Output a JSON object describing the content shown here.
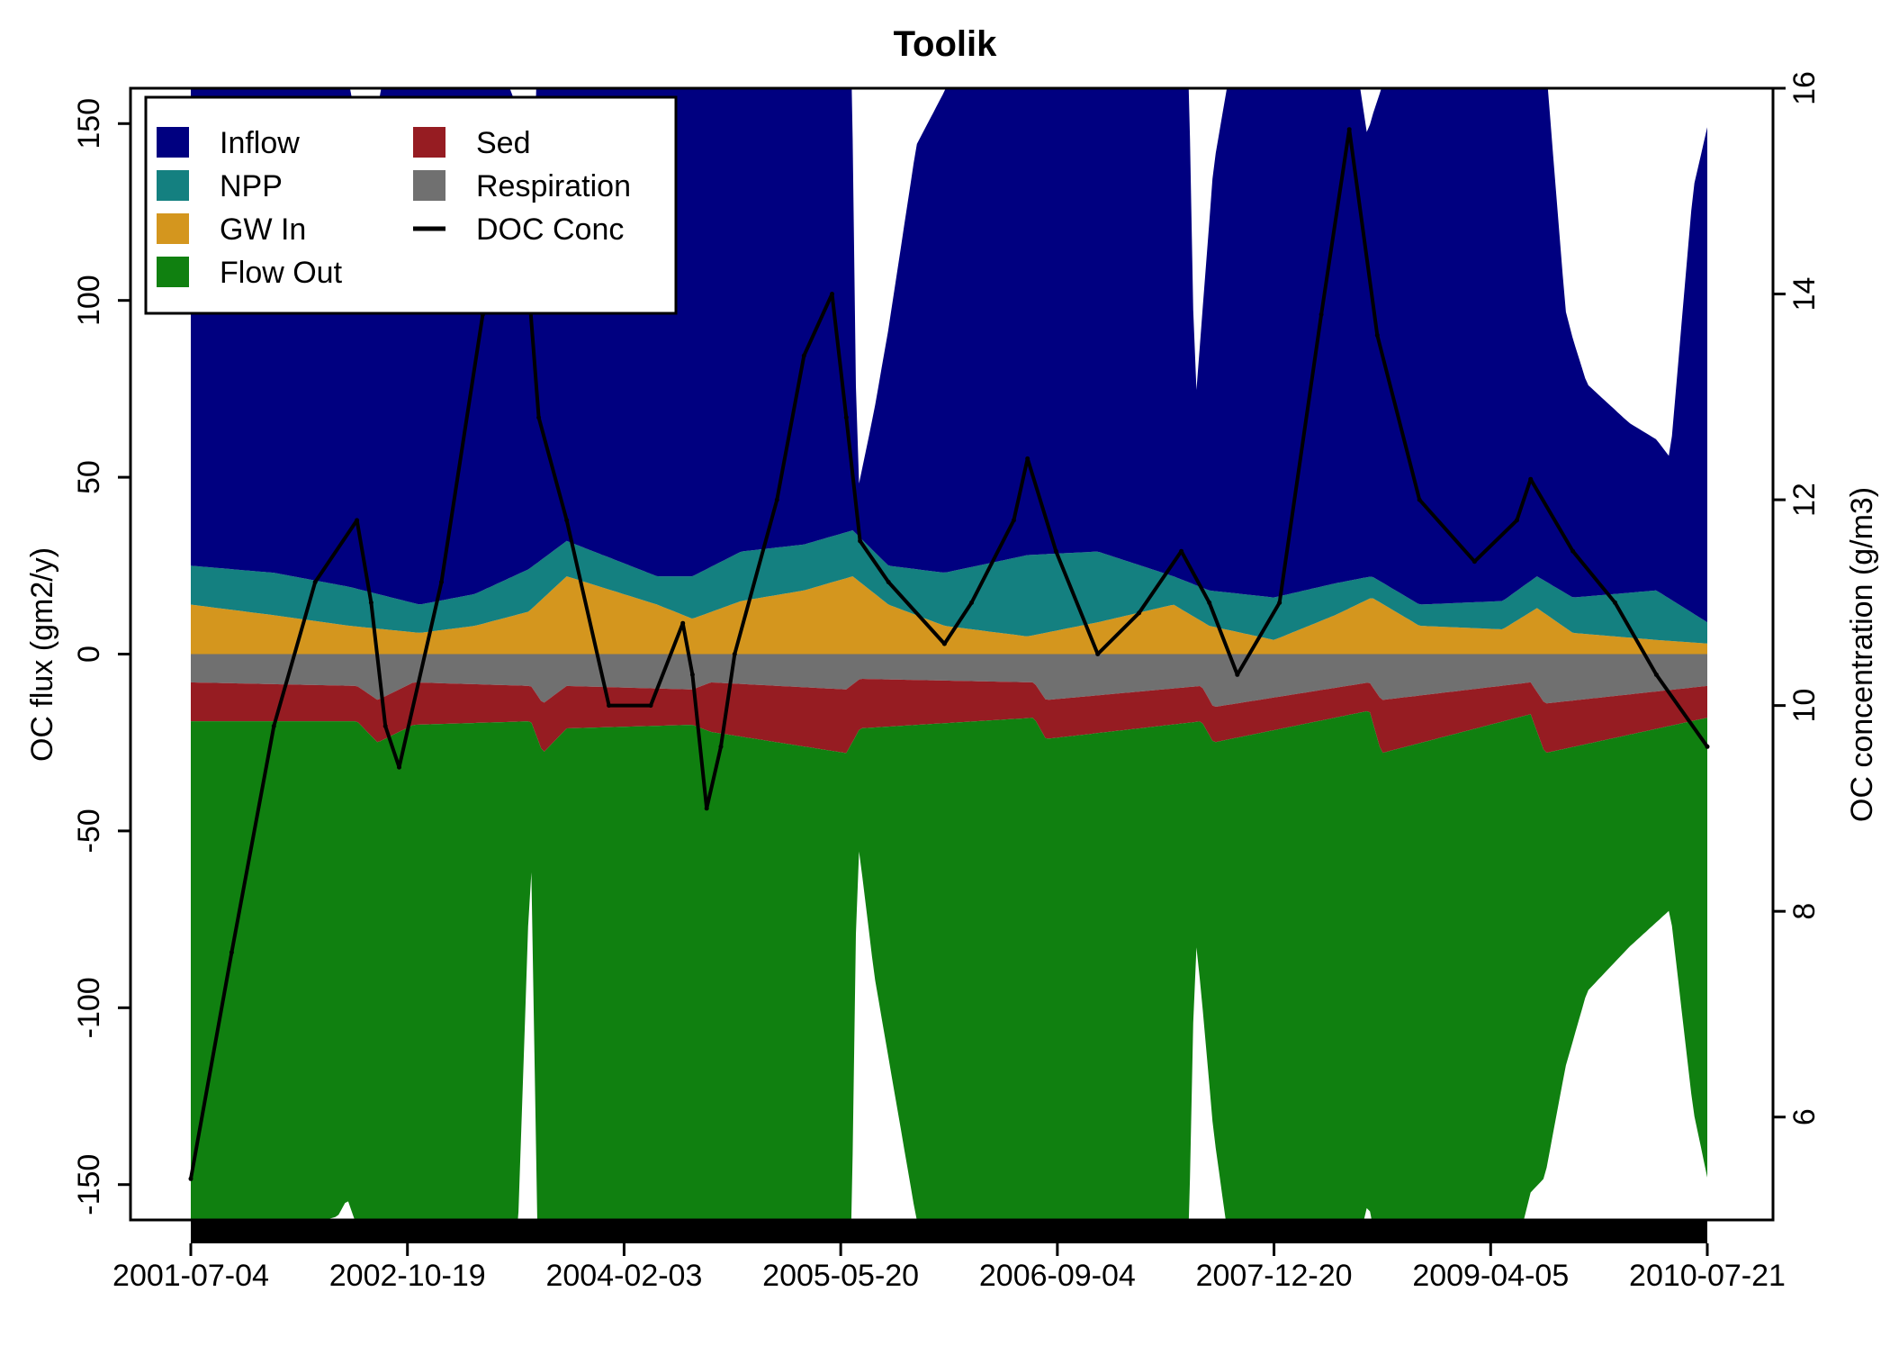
{
  "chart_data": {
    "type": "area",
    "title": "Toolik",
    "ylabel": "OC flux (gm2/y)",
    "y2label": "OC concentration (g/m3)",
    "xlabel": "",
    "ylim": [
      -160,
      160
    ],
    "y2lim": [
      5,
      16
    ],
    "xlim": [
      "2001-07-04",
      "2010-07-21"
    ],
    "yticks": [
      -150,
      -100,
      -50,
      0,
      50,
      100,
      150
    ],
    "y2ticks": [
      6,
      8,
      10,
      12,
      14,
      16
    ],
    "xticks": [
      "2001-07-04",
      "2002-10-19",
      "2004-02-03",
      "2005-05-20",
      "2006-09-04",
      "2007-12-20",
      "2009-04-05",
      "2010-07-21"
    ],
    "grid": false,
    "legend_position": "top-left",
    "legend": [
      {
        "label": "Inflow",
        "color": "#000080",
        "kind": "box"
      },
      {
        "label": "NPP",
        "color": "#148080",
        "kind": "box"
      },
      {
        "label": "GW In",
        "color": "#d4961e",
        "kind": "box"
      },
      {
        "label": "Flow Out",
        "color": "#108010",
        "kind": "box"
      },
      {
        "label": "Sed",
        "color": "#961c22",
        "kind": "box"
      },
      {
        "label": "Respiration",
        "color": "#707070",
        "kind": "box"
      },
      {
        "label": "DOC Conc",
        "color": "#000000",
        "kind": "line"
      }
    ],
    "series": [
      {
        "name": "GW In",
        "axis": "left",
        "stack": "positive",
        "color": "#d4961e",
        "x": [
          "2001-07-04",
          "2002-01-01",
          "2002-06-15",
          "2002-11-15",
          "2003-03-15",
          "2003-07-10",
          "2003-10-01",
          "2004-04-15",
          "2004-07-01",
          "2004-10-15",
          "2005-03-01",
          "2005-06-15",
          "2005-09-01",
          "2006-01-01",
          "2006-07-01",
          "2006-12-01",
          "2007-05-15",
          "2007-08-01",
          "2007-12-20",
          "2008-05-01",
          "2008-07-20",
          "2008-11-01",
          "2009-05-01",
          "2009-07-15",
          "2009-10-01",
          "2010-04-01",
          "2010-07-21"
        ],
        "values": [
          14,
          11,
          8,
          6,
          8,
          12,
          22,
          14,
          10,
          15,
          18,
          22,
          14,
          8,
          5,
          9,
          14,
          8,
          4,
          11,
          16,
          8,
          7,
          13,
          6,
          4,
          3
        ]
      },
      {
        "name": "NPP",
        "axis": "left",
        "stack": "positive",
        "color": "#148080",
        "x": [
          "2001-07-04",
          "2002-01-01",
          "2002-06-15",
          "2002-11-15",
          "2003-03-15",
          "2003-07-10",
          "2003-10-01",
          "2004-04-15",
          "2004-07-01",
          "2004-10-15",
          "2005-03-01",
          "2005-06-15",
          "2005-09-01",
          "2006-01-01",
          "2006-07-01",
          "2006-12-01",
          "2007-05-15",
          "2007-08-01",
          "2007-12-20",
          "2008-05-01",
          "2008-07-20",
          "2008-11-01",
          "2009-05-01",
          "2009-07-15",
          "2009-10-01",
          "2010-04-01",
          "2010-07-21"
        ],
        "values": [
          11,
          12,
          11,
          8,
          9,
          12,
          10,
          8,
          12,
          14,
          13,
          13,
          11,
          15,
          23,
          20,
          8,
          10,
          12,
          9,
          6,
          6,
          8,
          9,
          10,
          14,
          6
        ]
      },
      {
        "name": "Inflow",
        "axis": "left",
        "stack": "positive",
        "color": "#000080",
        "x": [
          "2001-07-04",
          "2001-09-01",
          "2002-03-01",
          "2002-05-20",
          "2002-06-10",
          "2002-07-20",
          "2002-09-01",
          "2002-11-01",
          "2003-02-01",
          "2003-05-01",
          "2003-06-20",
          "2003-07-15",
          "2003-08-01",
          "2004-04-01",
          "2004-07-01",
          "2004-10-01",
          "2005-01-01",
          "2005-04-01",
          "2005-06-10",
          "2005-06-25",
          "2005-08-01",
          "2005-11-01",
          "2006-04-01",
          "2006-07-01",
          "2006-10-01",
          "2007-02-01",
          "2007-05-01",
          "2007-06-15",
          "2007-07-01",
          "2007-08-10",
          "2007-10-01",
          "2008-01-01",
          "2008-06-01",
          "2008-07-10",
          "2008-09-01",
          "2009-01-01",
          "2009-04-01",
          "2009-06-01",
          "2009-08-01",
          "2009-09-15",
          "2009-11-01",
          "2010-02-01",
          "2010-05-01",
          "2010-06-20",
          "2010-07-21"
        ],
        "values": [
          150,
          150,
          150,
          150,
          145,
          118,
          150,
          150,
          150,
          150,
          130,
          80,
          160,
          160,
          160,
          160,
          160,
          160,
          160,
          12,
          40,
          120,
          160,
          160,
          160,
          160,
          160,
          160,
          50,
          120,
          160,
          160,
          160,
          125,
          150,
          160,
          160,
          160,
          150,
          80,
          60,
          48,
          40,
          120,
          140
        ]
      },
      {
        "name": "Respiration",
        "axis": "left",
        "stack": "negative",
        "color": "#707070",
        "x": [
          "2001-07-04",
          "2002-07-01",
          "2002-08-15",
          "2002-11-01",
          "2003-07-15",
          "2003-08-10",
          "2003-10-01",
          "2004-07-01",
          "2004-08-10",
          "2005-06-01",
          "2005-07-01",
          "2006-07-15",
          "2006-08-10",
          "2007-07-15",
          "2007-08-10",
          "2008-07-15",
          "2008-08-10",
          "2009-07-01",
          "2009-08-01",
          "2010-07-21"
        ],
        "values": [
          -8,
          -9,
          -13,
          -8,
          -9,
          -14,
          -9,
          -10,
          -8,
          -10,
          -7,
          -8,
          -13,
          -9,
          -15,
          -8,
          -13,
          -8,
          -14,
          -9
        ]
      },
      {
        "name": "Sed",
        "axis": "left",
        "stack": "negative",
        "color": "#961c22",
        "x": [
          "2001-07-04",
          "2002-07-01",
          "2002-08-15",
          "2002-11-01",
          "2003-07-15",
          "2003-08-10",
          "2003-10-01",
          "2004-07-01",
          "2004-08-10",
          "2005-06-01",
          "2005-07-01",
          "2006-07-15",
          "2006-08-10",
          "2007-07-15",
          "2007-08-10",
          "2008-07-15",
          "2008-08-10",
          "2009-07-01",
          "2009-08-01",
          "2010-07-21"
        ],
        "values": [
          -11,
          -10,
          -12,
          -12,
          -10,
          -14,
          -12,
          -10,
          -14,
          -18,
          -14,
          -10,
          -11,
          -10,
          -10,
          -8,
          -15,
          -9,
          -14,
          -9
        ]
      },
      {
        "name": "Flow Out",
        "axis": "left",
        "stack": "negative",
        "color": "#108010",
        "x": [
          "2001-07-04",
          "2002-01-01",
          "2002-05-20",
          "2002-06-10",
          "2002-07-20",
          "2002-09-01",
          "2002-11-01",
          "2003-03-01",
          "2003-06-15",
          "2003-07-15",
          "2003-08-01",
          "2004-04-01",
          "2004-08-01",
          "2005-01-01",
          "2005-06-10",
          "2005-06-25",
          "2005-08-01",
          "2005-11-01",
          "2006-04-01",
          "2006-08-01",
          "2007-01-01",
          "2007-06-15",
          "2007-07-01",
          "2007-08-10",
          "2007-10-01",
          "2008-01-01",
          "2008-06-01",
          "2008-07-10",
          "2008-09-01",
          "2009-01-01",
          "2009-06-01",
          "2009-08-01",
          "2009-09-15",
          "2009-11-01",
          "2010-02-01",
          "2010-05-01",
          "2010-06-20",
          "2010-07-21"
        ],
        "values": [
          -150,
          -145,
          -140,
          -135,
          -150,
          -140,
          -150,
          -150,
          -150,
          -35,
          -160,
          -160,
          -160,
          -160,
          -160,
          -30,
          -70,
          -140,
          -160,
          -160,
          -160,
          -160,
          -60,
          -110,
          -160,
          -160,
          -160,
          -140,
          -150,
          -160,
          -150,
          -120,
          -90,
          -70,
          -60,
          -52,
          -110,
          -130
        ]
      },
      {
        "name": "DOC Conc",
        "axis": "right",
        "type": "line",
        "color": "#000000",
        "x": [
          "2001-07-04",
          "2001-10-01",
          "2002-01-01",
          "2002-04-01",
          "2002-07-01",
          "2002-08-01",
          "2002-09-01",
          "2002-10-01",
          "2003-01-01",
          "2003-04-01",
          "2003-07-01",
          "2003-08-01",
          "2003-10-01",
          "2004-01-01",
          "2004-04-01",
          "2004-06-10",
          "2004-07-01",
          "2004-08-01",
          "2004-09-01",
          "2004-10-01",
          "2005-01-01",
          "2005-03-01",
          "2005-05-01",
          "2005-06-01",
          "2005-07-01",
          "2005-09-01",
          "2006-01-01",
          "2006-03-01",
          "2006-06-01",
          "2006-07-01",
          "2006-09-01",
          "2006-12-01",
          "2007-03-01",
          "2007-06-01",
          "2007-08-01",
          "2007-10-01",
          "2008-01-01",
          "2008-04-01",
          "2008-06-01",
          "2008-08-01",
          "2008-11-01",
          "2009-03-01",
          "2009-06-01",
          "2009-07-01",
          "2009-10-01",
          "2010-01-01",
          "2010-04-01",
          "2010-07-21"
        ],
        "values": [
          5.4,
          7.6,
          9.8,
          11.2,
          11.8,
          11.0,
          9.8,
          9.4,
          11.2,
          13.8,
          14.6,
          12.8,
          11.8,
          10.0,
          10.0,
          10.8,
          10.3,
          9.0,
          9.6,
          10.5,
          12.0,
          13.4,
          14.0,
          12.8,
          11.6,
          11.2,
          10.6,
          11.0,
          11.8,
          12.4,
          11.5,
          10.5,
          10.9,
          11.5,
          11.0,
          10.3,
          11.0,
          13.8,
          15.6,
          13.6,
          12.0,
          11.4,
          11.8,
          12.2,
          11.5,
          11.0,
          10.3,
          9.6
        ]
      }
    ]
  }
}
